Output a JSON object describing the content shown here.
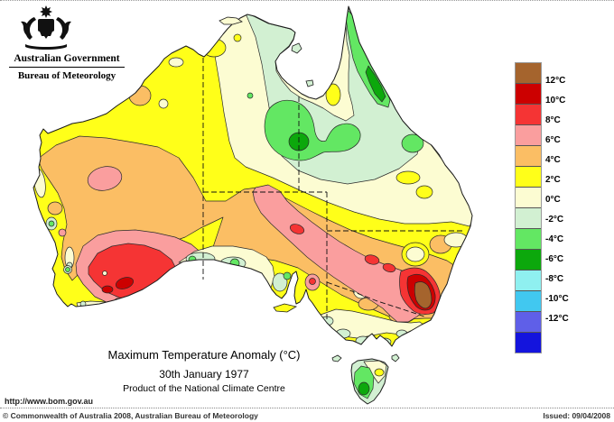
{
  "header": {
    "government": "Australian Government",
    "bureau": "Bureau of Meteorology"
  },
  "map": {
    "title": "Maximum Temperature Anomaly (°C)",
    "date": "30th January 1977",
    "product": "Product of the National Climate Centre",
    "region": "Australia"
  },
  "legend": {
    "labels": [
      "12°C",
      "10°C",
      "8°C",
      "6°C",
      "4°C",
      "2°C",
      "0°C",
      "-2°C",
      "-4°C",
      "-6°C",
      "-8°C",
      "-10°C",
      "-12°C"
    ],
    "colors": [
      "#a5642d",
      "#cc0000",
      "#f53434",
      "#fa9e9e",
      "#fbbe64",
      "#ffff19",
      "#fcfcd2",
      "#d2f0d2",
      "#63e763",
      "#0ca80c",
      "#8ff0f0",
      "#41c8f0",
      "#5f5fe8",
      "#1414dd"
    ]
  },
  "footer": {
    "url": "http://www.bom.gov.au",
    "copyright": "© Commonwealth of Australia 2008, Australian Bureau of Meteorology",
    "issued": "Issued: 09/04/2008"
  },
  "palette": {
    "brown": "#a5642d",
    "darkred": "#cc0000",
    "red": "#f53434",
    "pink": "#fa9e9e",
    "orange": "#fbbe64",
    "yellow": "#ffff19",
    "cream": "#fcfcd2",
    "palegreen": "#d2f0d2",
    "green": "#63e763",
    "darkgreen": "#0ca80c",
    "coast": "#1a1a1a",
    "contour": "#2a2a2a",
    "sea": "#ffffff"
  }
}
